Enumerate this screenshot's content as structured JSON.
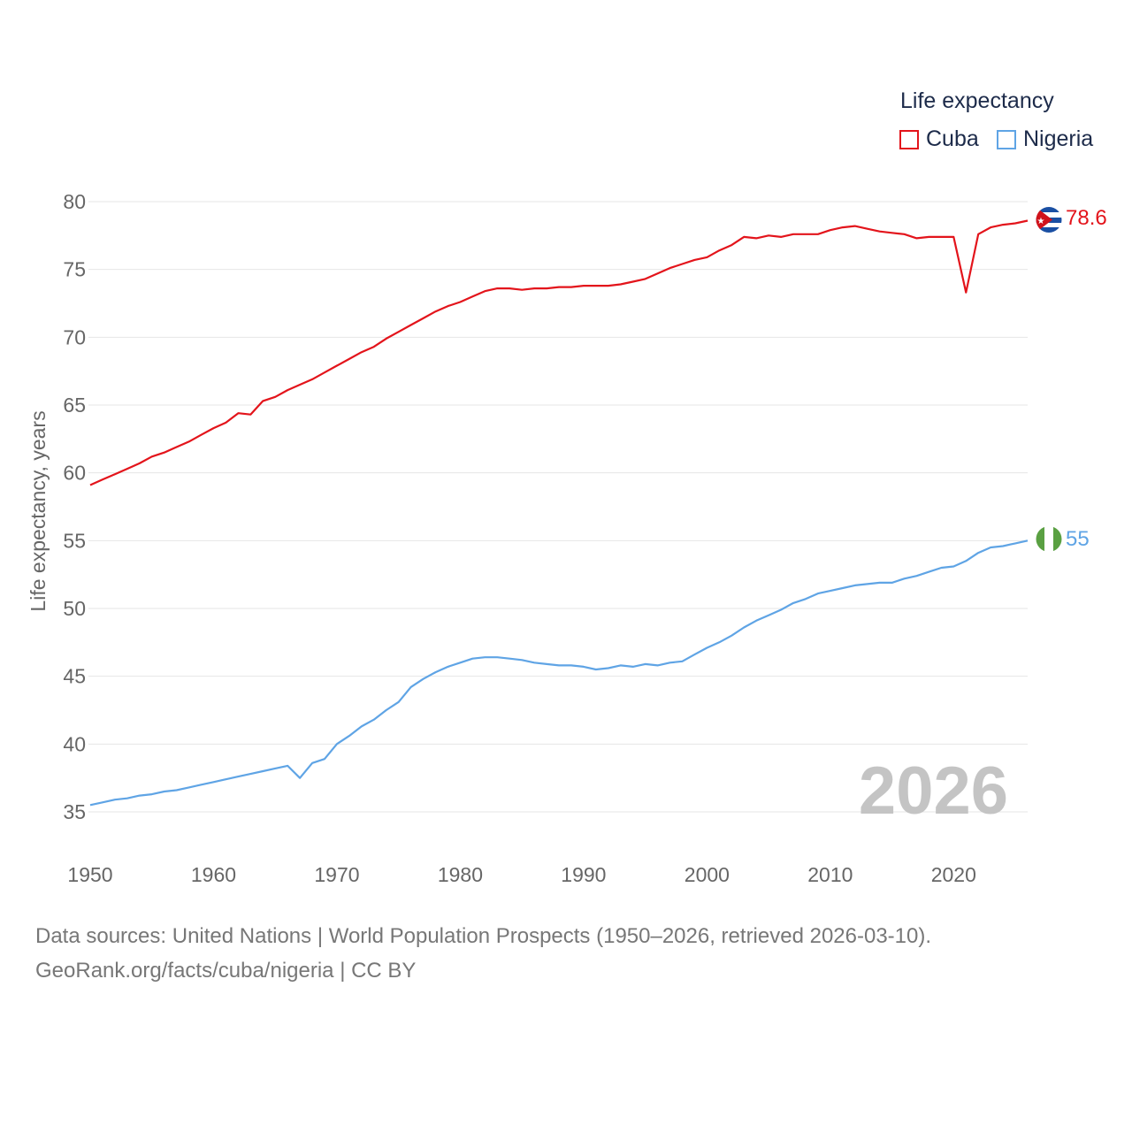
{
  "legend": {
    "title": "Life expectancy",
    "items": [
      {
        "label": "Cuba",
        "color": "#e3141b"
      },
      {
        "label": "Nigeria",
        "color": "#5fa4e5"
      }
    ]
  },
  "footer": {
    "sources": "Data sources: United Nations | World Population Prospects (1950–2026, retrieved 2026-03-10).",
    "attribution": "GeoRank.org/facts/cuba/nigeria | CC BY"
  },
  "chart_data": {
    "type": "line",
    "title": "Life expectancy",
    "xlabel": "",
    "ylabel": "Life expectancy, years",
    "xlim": [
      1950,
      2026
    ],
    "ylim": [
      33,
      80
    ],
    "x_ticks": [
      1950,
      1960,
      1970,
      1980,
      1990,
      2000,
      2010,
      2020
    ],
    "y_ticks": [
      35,
      40,
      45,
      50,
      55,
      60,
      65,
      70,
      75,
      80
    ],
    "grid": true,
    "legend_position": "top-right",
    "year_watermark": "2026",
    "x": [
      1950,
      1951,
      1952,
      1953,
      1954,
      1955,
      1956,
      1957,
      1958,
      1959,
      1960,
      1961,
      1962,
      1963,
      1964,
      1965,
      1966,
      1967,
      1968,
      1969,
      1970,
      1971,
      1972,
      1973,
      1974,
      1975,
      1976,
      1977,
      1978,
      1979,
      1980,
      1981,
      1982,
      1983,
      1984,
      1985,
      1986,
      1987,
      1988,
      1989,
      1990,
      1991,
      1992,
      1993,
      1994,
      1995,
      1996,
      1997,
      1998,
      1999,
      2000,
      2001,
      2002,
      2003,
      2004,
      2005,
      2006,
      2007,
      2008,
      2009,
      2010,
      2011,
      2012,
      2013,
      2014,
      2015,
      2016,
      2017,
      2018,
      2019,
      2020,
      2021,
      2022,
      2023,
      2024,
      2025,
      2026
    ],
    "series": [
      {
        "name": "Cuba",
        "color": "#e3141b",
        "end_label": "78.6",
        "flag": "cuba-flag",
        "values": [
          59.1,
          59.5,
          59.9,
          60.3,
          60.7,
          61.2,
          61.5,
          61.9,
          62.3,
          62.8,
          63.3,
          63.7,
          64.4,
          64.3,
          65.3,
          65.6,
          66.1,
          66.5,
          66.9,
          67.4,
          67.9,
          68.4,
          68.9,
          69.3,
          69.9,
          70.4,
          70.9,
          71.4,
          71.9,
          72.3,
          72.6,
          73.0,
          73.4,
          73.6,
          73.6,
          73.5,
          73.6,
          73.6,
          73.7,
          73.7,
          73.8,
          73.8,
          73.8,
          73.9,
          74.1,
          74.3,
          74.7,
          75.1,
          75.4,
          75.7,
          75.9,
          76.4,
          76.8,
          77.4,
          77.3,
          77.5,
          77.4,
          77.6,
          77.6,
          77.6,
          77.9,
          78.1,
          78.2,
          78.0,
          77.8,
          77.7,
          77.6,
          77.3,
          77.4,
          77.4,
          77.4,
          73.3,
          77.6,
          78.1,
          78.3,
          78.4,
          78.6
        ]
      },
      {
        "name": "Nigeria",
        "color": "#5fa4e5",
        "end_label": "55",
        "flag": "nigeria-flag",
        "values": [
          35.5,
          35.7,
          35.9,
          36.0,
          36.2,
          36.3,
          36.5,
          36.6,
          36.8,
          37.0,
          37.2,
          37.4,
          37.6,
          37.8,
          38.0,
          38.2,
          38.4,
          37.5,
          38.6,
          38.9,
          40.0,
          40.6,
          41.3,
          41.8,
          42.5,
          43.1,
          44.2,
          44.8,
          45.3,
          45.7,
          46.0,
          46.3,
          46.4,
          46.4,
          46.3,
          46.2,
          46.0,
          45.9,
          45.8,
          45.8,
          45.7,
          45.5,
          45.6,
          45.8,
          45.7,
          45.9,
          45.8,
          46.0,
          46.1,
          46.6,
          47.1,
          47.5,
          48.0,
          48.6,
          49.1,
          49.5,
          49.9,
          50.4,
          50.7,
          51.1,
          51.3,
          51.5,
          51.7,
          51.8,
          51.9,
          51.9,
          52.2,
          52.4,
          52.7,
          53.0,
          53.1,
          53.5,
          54.1,
          54.5,
          54.6,
          54.8,
          55.0
        ]
      }
    ]
  }
}
